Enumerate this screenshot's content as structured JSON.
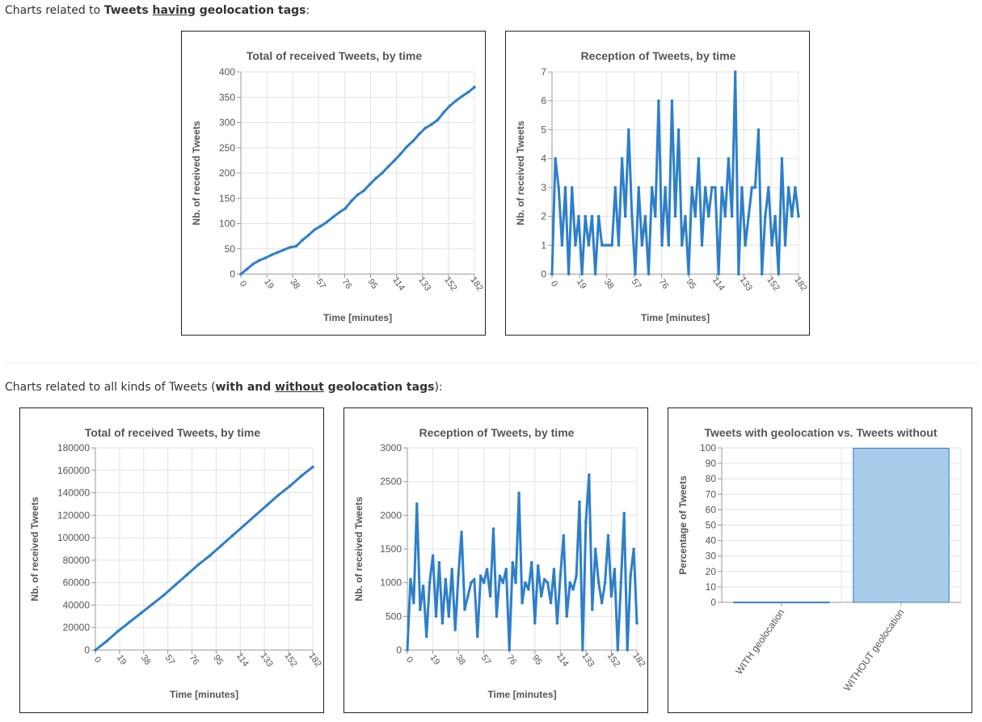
{
  "sections": [
    {
      "prefix": "Charts related to ",
      "bold1": "Tweets ",
      "underlined": "having",
      "bold2": " geolocation tags",
      "suffix": ":"
    },
    {
      "prefix": "Charts related to all kinds of Tweets (",
      "bold1": "with and ",
      "underlined": "without",
      "bold2": " geolocation tags",
      "suffix": "):"
    }
  ],
  "colors": {
    "line": "#2e7fc9",
    "bar_fill": "#a9cbea",
    "bar_stroke": "#2e7fc9",
    "grid": "#e3e3e3",
    "axis_text": "#555"
  },
  "chart_data": [
    {
      "id": "geo-total",
      "type": "line",
      "title": "Total of received Tweets, by time",
      "xlabel": "Time [minutes]",
      "ylabel": "Nb. of received Tweets",
      "x_ticks": [
        "0",
        "19",
        "38",
        "57",
        "76",
        "95",
        "114",
        "133",
        "152",
        "182"
      ],
      "xlim": [
        0,
        190
      ],
      "ylim": [
        0,
        400
      ],
      "y_ticks": [
        0,
        50,
        100,
        150,
        200,
        250,
        300,
        350,
        400
      ],
      "points": [
        [
          0,
          0
        ],
        [
          5,
          10
        ],
        [
          10,
          20
        ],
        [
          15,
          27
        ],
        [
          20,
          32
        ],
        [
          25,
          38
        ],
        [
          30,
          43
        ],
        [
          35,
          48
        ],
        [
          40,
          53
        ],
        [
          45,
          55
        ],
        [
          50,
          67
        ],
        [
          55,
          77
        ],
        [
          60,
          88
        ],
        [
          65,
          95
        ],
        [
          70,
          103
        ],
        [
          75,
          113
        ],
        [
          80,
          122
        ],
        [
          85,
          130
        ],
        [
          90,
          145
        ],
        [
          95,
          157
        ],
        [
          100,
          165
        ],
        [
          105,
          178
        ],
        [
          110,
          190
        ],
        [
          115,
          200
        ],
        [
          120,
          213
        ],
        [
          125,
          225
        ],
        [
          130,
          238
        ],
        [
          135,
          252
        ],
        [
          140,
          263
        ],
        [
          145,
          277
        ],
        [
          150,
          289
        ],
        [
          155,
          296
        ],
        [
          160,
          305
        ],
        [
          165,
          320
        ],
        [
          170,
          333
        ],
        [
          175,
          343
        ],
        [
          180,
          352
        ],
        [
          185,
          360
        ],
        [
          190,
          370
        ]
      ],
      "grid": true
    },
    {
      "id": "geo-reception",
      "type": "line",
      "title": "Reception of Tweets, by time",
      "xlabel": "Time [minutes]",
      "ylabel": "Nb. of received Tweets",
      "x_ticks": [
        "0",
        "19",
        "38",
        "57",
        "76",
        "95",
        "114",
        "133",
        "152",
        "182"
      ],
      "xlim": [
        0,
        190
      ],
      "ylim": [
        0,
        7
      ],
      "y_ticks": [
        0,
        1,
        2,
        3,
        4,
        5,
        6,
        7
      ],
      "values": [
        0,
        4,
        3,
        1,
        3,
        0,
        3,
        1,
        2,
        0,
        2,
        1,
        2,
        0,
        2,
        1,
        1,
        1,
        1,
        3,
        1,
        4,
        2,
        5,
        2,
        0,
        3,
        1,
        2,
        0,
        3,
        2,
        6,
        1,
        3,
        1,
        6,
        2,
        5,
        1,
        2,
        0,
        3,
        2,
        4,
        1,
        3,
        2,
        3,
        3,
        0,
        3,
        2,
        4,
        2,
        7,
        0,
        3,
        1,
        2,
        3,
        3,
        5,
        0,
        2,
        3,
        1,
        2,
        0,
        4,
        1,
        3,
        2,
        3,
        2
      ],
      "grid": true
    },
    {
      "id": "all-total",
      "type": "line",
      "title": "Total of received Tweets, by time",
      "xlabel": "Time [minutes]",
      "ylabel": "Nb. of received Tweets",
      "x_ticks": [
        "0",
        "19",
        "38",
        "57",
        "76",
        "95",
        "114",
        "133",
        "152",
        "182"
      ],
      "xlim": [
        0,
        190
      ],
      "ylim": [
        0,
        180000
      ],
      "y_ticks": [
        0,
        20000,
        40000,
        60000,
        80000,
        100000,
        120000,
        140000,
        160000,
        180000
      ],
      "points": [
        [
          0,
          0
        ],
        [
          10,
          8000
        ],
        [
          20,
          17000
        ],
        [
          30,
          25000
        ],
        [
          40,
          33000
        ],
        [
          50,
          41000
        ],
        [
          60,
          49000
        ],
        [
          70,
          58000
        ],
        [
          80,
          67000
        ],
        [
          90,
          76000
        ],
        [
          100,
          84000
        ],
        [
          110,
          93000
        ],
        [
          120,
          102000
        ],
        [
          130,
          111000
        ],
        [
          140,
          120000
        ],
        [
          150,
          129000
        ],
        [
          160,
          138000
        ],
        [
          170,
          146000
        ],
        [
          180,
          155000
        ],
        [
          190,
          163000
        ]
      ],
      "grid": true
    },
    {
      "id": "all-reception",
      "type": "line",
      "title": "Reception of Tweets, by time",
      "xlabel": "Time [minutes]",
      "ylabel": "Nb. of received Tweets",
      "x_ticks": [
        "0",
        "19",
        "38",
        "57",
        "76",
        "95",
        "114",
        "133",
        "152",
        "182"
      ],
      "xlim": [
        0,
        190
      ],
      "ylim": [
        0,
        3000
      ],
      "y_ticks": [
        0,
        500,
        1000,
        1500,
        2000,
        2500,
        3000
      ],
      "values": [
        0,
        1050,
        700,
        2170,
        600,
        950,
        200,
        1000,
        1400,
        500,
        1300,
        400,
        1050,
        500,
        1200,
        300,
        1100,
        1750,
        600,
        800,
        1000,
        1050,
        200,
        1100,
        1000,
        1200,
        800,
        1800,
        500,
        1100,
        1000,
        1200,
        0,
        1300,
        1000,
        2330,
        700,
        1000,
        900,
        1300,
        400,
        1250,
        800,
        1050,
        1000,
        700,
        1200,
        400,
        1100,
        1700,
        500,
        1000,
        900,
        1100,
        2200,
        0,
        1900,
        2600,
        600,
        1500,
        1000,
        700,
        1000,
        1700,
        800,
        1200,
        0,
        1000,
        2030,
        0,
        1100,
        1500,
        400
      ],
      "grid": true
    },
    {
      "id": "geo-vs-without",
      "type": "bar",
      "title": "Tweets with geolocation vs. Tweets without",
      "xlabel": "",
      "ylabel": "Percentage of Tweets",
      "categories": [
        "WITH geolocation",
        "WITHOUT geolocation"
      ],
      "values": [
        0.2,
        99.8
      ],
      "ylim": [
        0,
        100
      ],
      "y_ticks": [
        0,
        10,
        20,
        30,
        40,
        50,
        60,
        70,
        80,
        90,
        100
      ],
      "grid": true
    }
  ]
}
